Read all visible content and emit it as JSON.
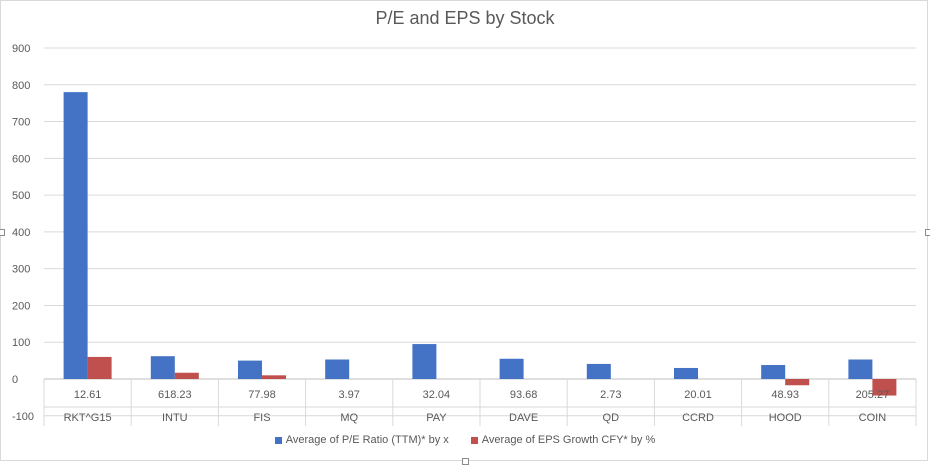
{
  "chart_data": {
    "type": "bar",
    "title": "P/E and EPS by Stock",
    "categories": [
      "RKT^G15",
      "INTU",
      "FIS",
      "MQ",
      "PAY",
      "DAVE",
      "QD",
      "CCRD",
      "HOOD",
      "COIN"
    ],
    "row_labels": [
      "12.61",
      "618.23",
      "77.98",
      "3.97",
      "32.04",
      "93.68",
      "2.73",
      "20.01",
      "48.93",
      "205.27"
    ],
    "series": [
      {
        "name": "Average of P/E Ratio (TTM)* by x",
        "color": "#4472c4",
        "values": [
          780,
          62,
          50,
          53,
          95,
          55,
          41,
          30,
          38,
          53
        ]
      },
      {
        "name": "Average of EPS Growth CFY* by %",
        "color": "#c0504d",
        "values": [
          60,
          17,
          10,
          0,
          0,
          0,
          0,
          0,
          -17,
          -45
        ]
      }
    ],
    "yticks": [
      900,
      800,
      700,
      600,
      500,
      400,
      300,
      200,
      100,
      0,
      -100
    ],
    "ylim": [
      -100,
      900
    ],
    "grid": true,
    "legend_position": "bottom"
  }
}
